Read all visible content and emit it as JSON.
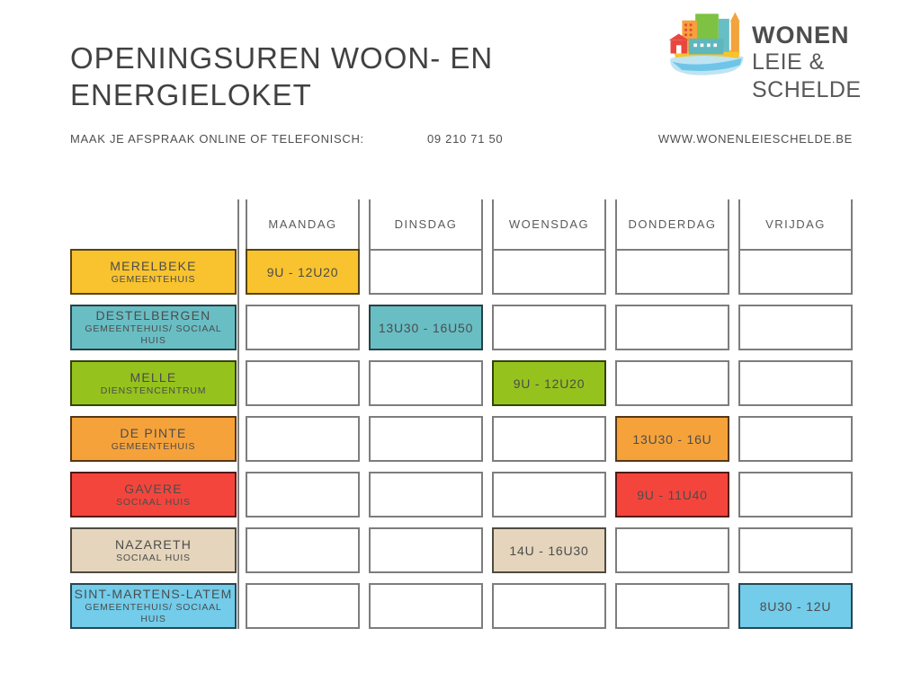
{
  "page": {
    "title_line1": "OPENINGSUREN WOON- EN",
    "title_line2": "ENERGIELOKET",
    "subtitle": "MAAK JE AFSPRAAK ONLINE OF TELEFONISCH:",
    "phone": "09 210 71 50",
    "website": "WWW.WONENLEIESCHELDE.BE"
  },
  "logo": {
    "name_top": "WONEN",
    "name_bottom": "LEIE & SCHELDE"
  },
  "table": {
    "day_headers": [
      "MAANDAG",
      "DINSDAG",
      "WOENSDAG",
      "DONDERDAG",
      "VRIJDAG"
    ],
    "rows": [
      {
        "name": "MERELBEKE",
        "sub": "GEMEENTEHUIS",
        "color": "#F8C32E",
        "border": "#574410",
        "day": "MAANDAG",
        "day_index": 0,
        "time": "9U - 12U20"
      },
      {
        "name": "DESTELBERGEN",
        "sub": "GEMEENTEHUIS/ SOCIAAL HUIS",
        "color": "#69BEC4",
        "border": "#244245",
        "day": "DINSDAG",
        "day_index": 1,
        "time": "13U30 - 16U50"
      },
      {
        "name": "MELLE",
        "sub": "DIENSTENCENTRUM",
        "color": "#96C21E",
        "border": "#34430a",
        "day": "WOENSDAG",
        "day_index": 2,
        "time": "9U - 12U20"
      },
      {
        "name": "DE PINTE",
        "sub": "GEMEENTEHUIS",
        "color": "#F6A23B",
        "border": "#563814",
        "day": "DONDERDAG",
        "day_index": 3,
        "time": "13U30 - 16U"
      },
      {
        "name": "GAVERE",
        "sub": "SOCIAAL HUIS",
        "color": "#F4453C",
        "border": "#551815",
        "day": "DONDERDAG",
        "day_index": 3,
        "time": "9U - 11U40"
      },
      {
        "name": "NAZARETH",
        "sub": "SOCIAAL HUIS",
        "color": "#E4D5BC",
        "border": "#4f4a41",
        "day": "WOENSDAG",
        "day_index": 2,
        "time": "14U - 16U30"
      },
      {
        "name": "SINT-MARTENS-LATEM",
        "sub": "GEMEENTEHUIS/ SOCIAAL HUIS",
        "color": "#72CCEA",
        "border": "#274752",
        "day": "VRIJDAG",
        "day_index": 4,
        "time": "8U30 - 12U"
      }
    ],
    "colors": {
      "empty_cell_border": "#7d7d7d",
      "divider": "#7d7d7d",
      "text": "#4c4c4c"
    }
  }
}
